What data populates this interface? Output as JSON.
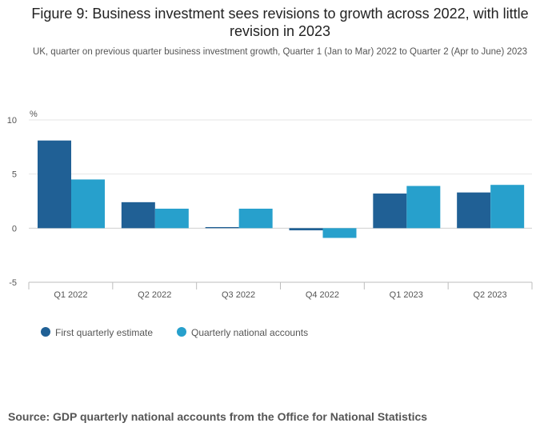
{
  "title": "Figure 9: Business investment sees revisions to growth across 2022, with little revision in 2023",
  "subtitle": "UK, quarter on previous quarter business investment growth, Quarter 1 (Jan to Mar) 2022 to Quarter 2 (Apr to June) 2023",
  "source": "Source: GDP quarterly national accounts from the Office for National Statistics",
  "chart_data": {
    "type": "bar",
    "title": "Figure 9: Business investment sees revisions to growth across 2022, with little revision in 2023",
    "xlabel": "",
    "ylabel": "%",
    "ylim": [
      -5,
      10
    ],
    "yticks": [
      10,
      5,
      0,
      -5
    ],
    "grid": true,
    "legend_position": "bottom-left",
    "categories": [
      "Q1 2022",
      "Q2 2022",
      "Q3 2022",
      "Q4 2022",
      "Q1 2023",
      "Q2 2023"
    ],
    "series": [
      {
        "name": "First quarterly estimate",
        "color": "#206095",
        "values": [
          8.1,
          2.4,
          0.1,
          -0.2,
          3.2,
          3.3
        ]
      },
      {
        "name": "Quarterly national accounts",
        "color": "#27a0cc",
        "values": [
          4.5,
          1.8,
          1.8,
          -0.9,
          3.9,
          4.0
        ]
      }
    ]
  }
}
